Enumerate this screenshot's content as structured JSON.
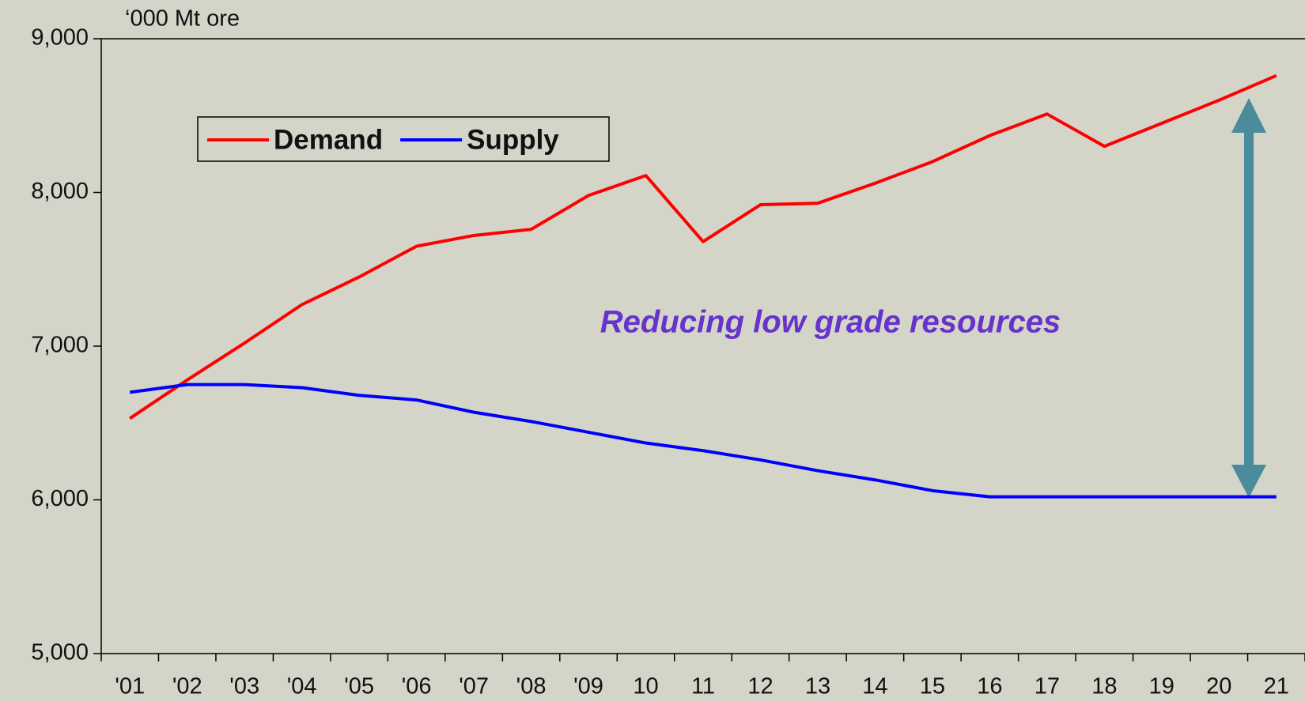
{
  "chart_data": {
    "type": "line",
    "y_unit_label": "‘000 Mt ore",
    "annotation": "Reducing low grade resources",
    "categories": [
      "'01",
      "'02",
      "'03",
      "'04",
      "'05",
      "'06",
      "'07",
      "'08",
      "'09",
      "10",
      "11",
      "12",
      "13",
      "14",
      "15",
      "16",
      "17",
      "18",
      "19",
      "20",
      "21"
    ],
    "series": [
      {
        "name": "Demand",
        "color": "#ff0000",
        "values": [
          6530,
          6780,
          7020,
          7270,
          7450,
          7650,
          7720,
          7760,
          7980,
          8110,
          7680,
          7920,
          7930,
          8060,
          8200,
          8370,
          8510,
          8300,
          8450,
          8600,
          8760
        ]
      },
      {
        "name": "Supply",
        "color": "#0000ff",
        "values": [
          6700,
          6750,
          6750,
          6730,
          6680,
          6650,
          6570,
          6510,
          6440,
          6370,
          6320,
          6260,
          6190,
          6130,
          6060,
          6020,
          6020,
          6020,
          6020,
          6020,
          6020
        ]
      }
    ],
    "ylim": [
      5000,
      9000
    ],
    "yticks": [
      {
        "value": 5000,
        "label": "5,000"
      },
      {
        "value": 6000,
        "label": "6,000"
      },
      {
        "value": 7000,
        "label": "7,000"
      },
      {
        "value": 8000,
        "label": "8,000"
      },
      {
        "value": 9000,
        "label": "9,000"
      }
    ],
    "grid": false,
    "legend": "top-left"
  }
}
